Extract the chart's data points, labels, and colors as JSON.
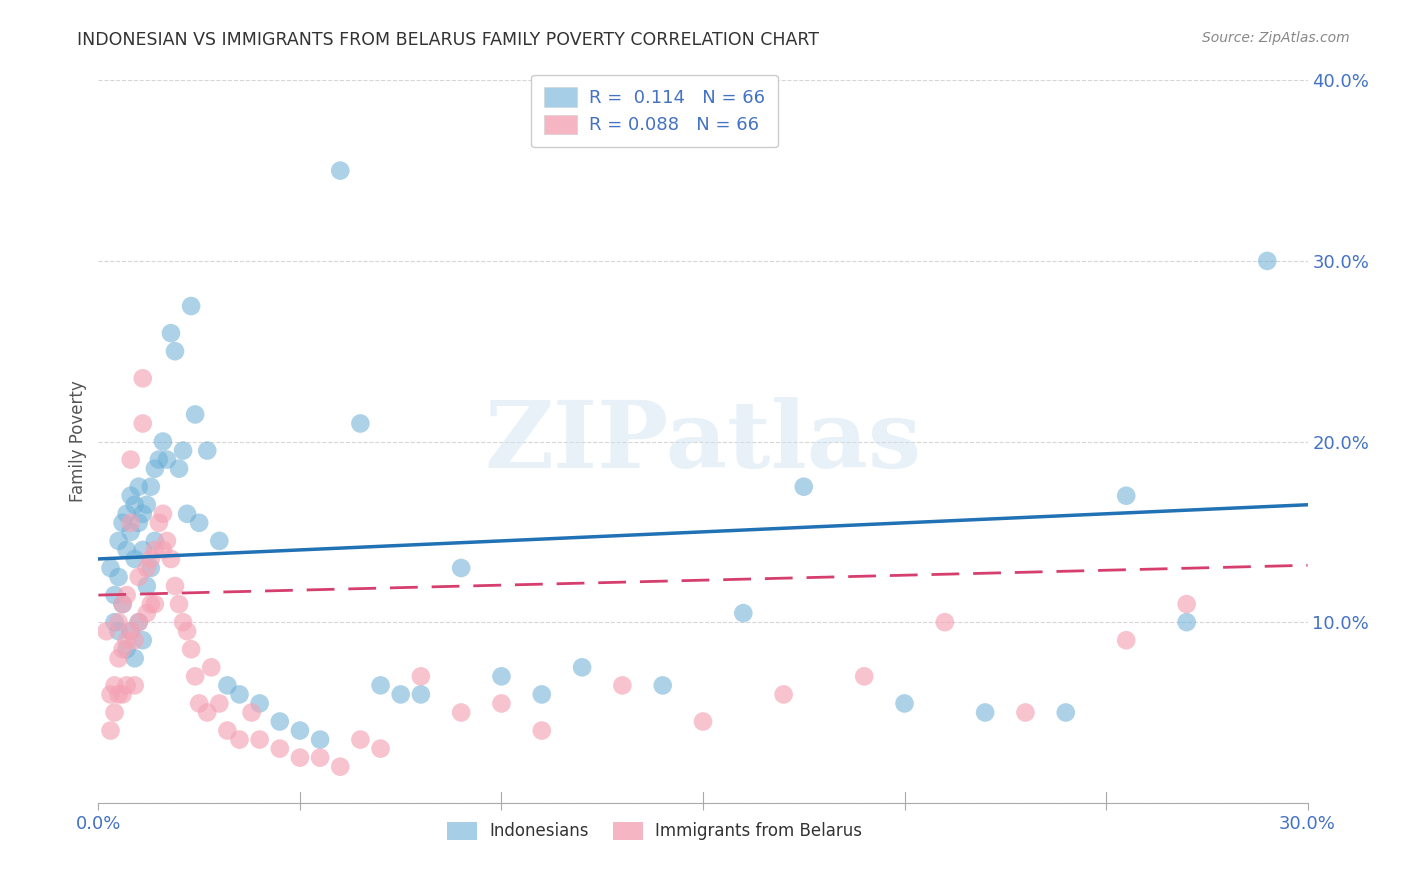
{
  "title": "INDONESIAN VS IMMIGRANTS FROM BELARUS FAMILY POVERTY CORRELATION CHART",
  "source": "Source: ZipAtlas.com",
  "ylabel": "Family Poverty",
  "xlim": [
    0.0,
    0.3
  ],
  "ylim": [
    0.0,
    0.4
  ],
  "tick_color": "#4472c4",
  "legend1_label": "R =  0.114   N = 66",
  "legend2_label": "R = 0.088   N = 66",
  "indonesian_label": "Indonesians",
  "belarus_label": "Immigrants from Belarus",
  "blue_color": "#6baed6",
  "pink_color": "#f4a3b5",
  "line_blue": "#2171b5",
  "line_pink": "#d63e6e",
  "watermark_color": "#d0e4f0",
  "background_color": "#ffffff",
  "indonesian_x": [
    0.003,
    0.004,
    0.004,
    0.005,
    0.005,
    0.005,
    0.006,
    0.006,
    0.007,
    0.007,
    0.007,
    0.008,
    0.008,
    0.008,
    0.009,
    0.009,
    0.009,
    0.01,
    0.01,
    0.01,
    0.011,
    0.011,
    0.011,
    0.012,
    0.012,
    0.013,
    0.013,
    0.014,
    0.014,
    0.015,
    0.016,
    0.017,
    0.018,
    0.019,
    0.02,
    0.021,
    0.022,
    0.023,
    0.024,
    0.025,
    0.027,
    0.03,
    0.032,
    0.035,
    0.04,
    0.045,
    0.05,
    0.055,
    0.06,
    0.065,
    0.07,
    0.075,
    0.08,
    0.09,
    0.1,
    0.11,
    0.12,
    0.14,
    0.16,
    0.175,
    0.2,
    0.22,
    0.24,
    0.255,
    0.27,
    0.29
  ],
  "indonesian_y": [
    0.13,
    0.115,
    0.1,
    0.145,
    0.125,
    0.095,
    0.155,
    0.11,
    0.16,
    0.14,
    0.085,
    0.17,
    0.15,
    0.095,
    0.165,
    0.135,
    0.08,
    0.175,
    0.155,
    0.1,
    0.16,
    0.14,
    0.09,
    0.165,
    0.12,
    0.175,
    0.13,
    0.185,
    0.145,
    0.19,
    0.2,
    0.19,
    0.26,
    0.25,
    0.185,
    0.195,
    0.16,
    0.275,
    0.215,
    0.155,
    0.195,
    0.145,
    0.065,
    0.06,
    0.055,
    0.045,
    0.04,
    0.035,
    0.35,
    0.21,
    0.065,
    0.06,
    0.06,
    0.13,
    0.07,
    0.06,
    0.075,
    0.065,
    0.105,
    0.175,
    0.055,
    0.05,
    0.05,
    0.17,
    0.1,
    0.3
  ],
  "belarus_x": [
    0.002,
    0.003,
    0.003,
    0.004,
    0.004,
    0.005,
    0.005,
    0.005,
    0.006,
    0.006,
    0.006,
    0.007,
    0.007,
    0.007,
    0.008,
    0.008,
    0.008,
    0.009,
    0.009,
    0.01,
    0.01,
    0.011,
    0.011,
    0.012,
    0.012,
    0.013,
    0.013,
    0.014,
    0.014,
    0.015,
    0.016,
    0.016,
    0.017,
    0.018,
    0.019,
    0.02,
    0.021,
    0.022,
    0.023,
    0.024,
    0.025,
    0.027,
    0.028,
    0.03,
    0.032,
    0.035,
    0.038,
    0.04,
    0.045,
    0.05,
    0.055,
    0.06,
    0.065,
    0.07,
    0.08,
    0.09,
    0.1,
    0.11,
    0.13,
    0.15,
    0.17,
    0.19,
    0.21,
    0.23,
    0.255,
    0.27
  ],
  "belarus_y": [
    0.095,
    0.06,
    0.04,
    0.065,
    0.05,
    0.1,
    0.08,
    0.06,
    0.11,
    0.085,
    0.06,
    0.115,
    0.09,
    0.065,
    0.19,
    0.155,
    0.095,
    0.09,
    0.065,
    0.125,
    0.1,
    0.235,
    0.21,
    0.13,
    0.105,
    0.135,
    0.11,
    0.14,
    0.11,
    0.155,
    0.16,
    0.14,
    0.145,
    0.135,
    0.12,
    0.11,
    0.1,
    0.095,
    0.085,
    0.07,
    0.055,
    0.05,
    0.075,
    0.055,
    0.04,
    0.035,
    0.05,
    0.035,
    0.03,
    0.025,
    0.025,
    0.02,
    0.035,
    0.03,
    0.07,
    0.05,
    0.055,
    0.04,
    0.065,
    0.045,
    0.06,
    0.07,
    0.1,
    0.05,
    0.09,
    0.11
  ]
}
